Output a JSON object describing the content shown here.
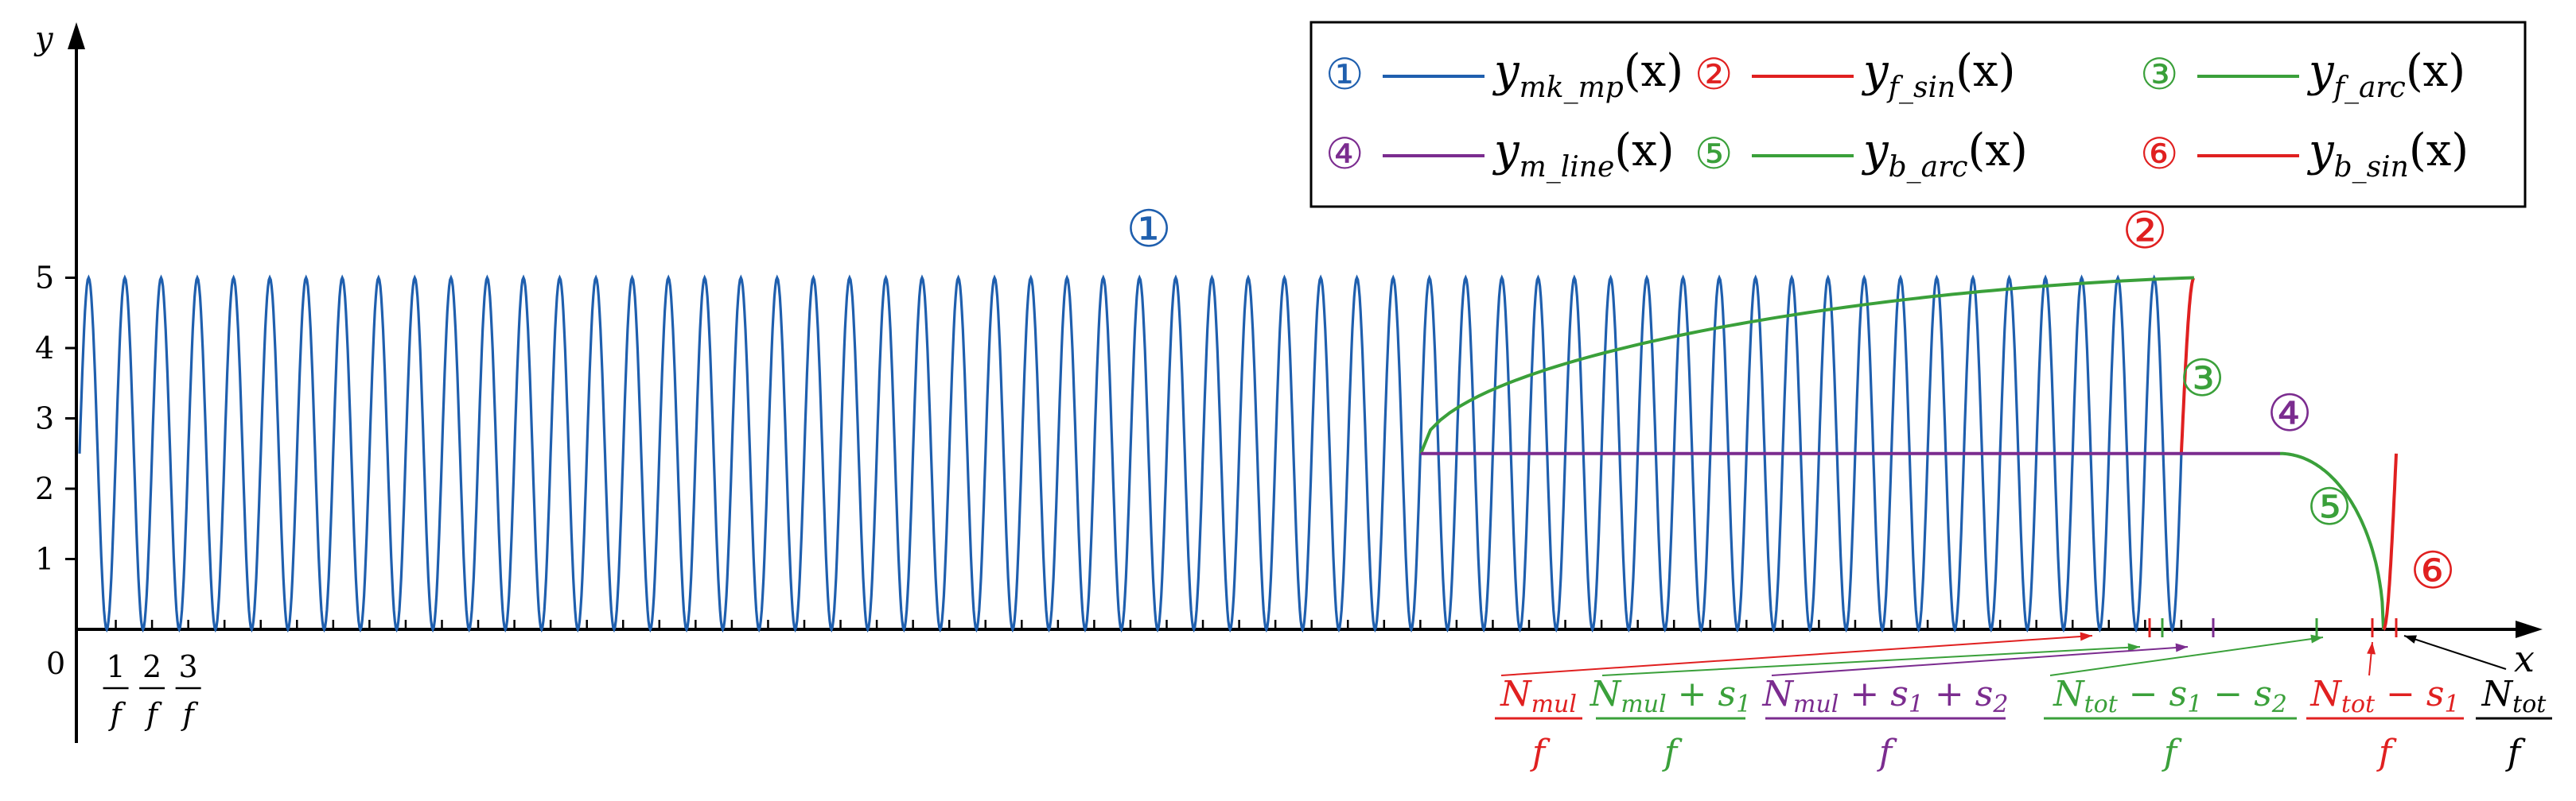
{
  "chart_data": {
    "type": "line",
    "title": "",
    "xlabel": "x",
    "ylabel": "y",
    "grid": false,
    "legend_position": "top-right",
    "ylim": [
      0,
      5
    ],
    "y_ticks": [
      "1",
      "2",
      "3",
      "4",
      "5"
    ],
    "origin_label": "0",
    "cycle_count": 58,
    "amplitude": 2.5,
    "offset": 2.5,
    "x_tick_fractions": [
      {
        "num": "1",
        "den": "f"
      },
      {
        "num": "2",
        "den": "f"
      },
      {
        "num": "3",
        "den": "f"
      }
    ],
    "series": [
      {
        "id": "1",
        "marker": "①",
        "legend_label": "y_mk_mp(x)",
        "color": "#1f5fae",
        "name_base": "y",
        "name_sub": "mk_mp",
        "name_arg": "(x)"
      },
      {
        "id": "2",
        "marker": "②",
        "legend_label": "y_f_sin(x)",
        "color": "#e02020",
        "name_base": "y",
        "name_sub": "f_sin",
        "name_arg": "(x)"
      },
      {
        "id": "3",
        "marker": "③",
        "legend_label": "y_f_arc(x)",
        "color": "#3aa03a",
        "name_base": "y",
        "name_sub": "f_arc",
        "name_arg": "(x)"
      },
      {
        "id": "4",
        "marker": "④",
        "legend_label": "y_m_line(x)",
        "color": "#7b2c8f",
        "name_base": "y",
        "name_sub": "m_line",
        "name_arg": "(x)"
      },
      {
        "id": "5",
        "marker": "⑤",
        "legend_label": "y_b_arc(x)",
        "color": "#3aa03a",
        "name_base": "y",
        "name_sub": "b_arc",
        "name_arg": "(x)"
      },
      {
        "id": "6",
        "marker": "⑥",
        "legend_label": "y_b_sin(x)",
        "color": "#e02020",
        "name_base": "y",
        "name_sub": "b_sin",
        "name_arg": "(x)"
      }
    ],
    "boundary_labels": [
      {
        "numerator": "N_mul / f",
        "num_parts": [
          [
            "N",
            "mul"
          ]
        ],
        "denominator": "f",
        "color": "#e02020"
      },
      {
        "numerator": "N_mul + s1",
        "num_parts": [
          [
            "N",
            "mul"
          ],
          [
            "+",
            ""
          ],
          [
            "s",
            "1"
          ]
        ],
        "denominator": "f",
        "color": "#3aa03a"
      },
      {
        "numerator": "N_mul + s1 + s2",
        "num_parts": [
          [
            "N",
            "mul"
          ],
          [
            "+",
            ""
          ],
          [
            "s",
            "1"
          ],
          [
            "+",
            ""
          ],
          [
            "s",
            "2"
          ]
        ],
        "denominator": "f",
        "color": "#7b2c8f"
      },
      {
        "numerator": "N_tot − s1 − s2",
        "num_parts": [
          [
            "N",
            "tot"
          ],
          [
            "−",
            ""
          ],
          [
            "s",
            "1"
          ],
          [
            "−",
            ""
          ],
          [
            "s",
            "2"
          ]
        ],
        "denominator": "f",
        "color": "#3aa03a"
      },
      {
        "numerator": "N_tot − s1",
        "num_parts": [
          [
            "N",
            "tot"
          ],
          [
            "−",
            ""
          ],
          [
            "s",
            "1"
          ]
        ],
        "denominator": "f",
        "color": "#e02020"
      },
      {
        "numerator": "N_tot",
        "num_parts": [
          [
            "N",
            "tot"
          ]
        ],
        "denominator": "f",
        "color": "#000000"
      }
    ]
  }
}
